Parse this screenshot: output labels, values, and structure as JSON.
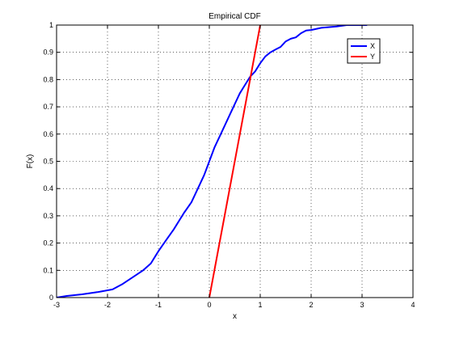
{
  "chart_data": {
    "type": "line",
    "title": "Empirical CDF",
    "xlabel": "x",
    "ylabel": "F(x)",
    "xlim": [
      -3,
      4
    ],
    "ylim": [
      0,
      1
    ],
    "xticks": [
      -3,
      -2,
      -1,
      0,
      1,
      2,
      3,
      4
    ],
    "yticks": [
      0,
      0.1,
      0.2,
      0.3,
      0.4,
      0.5,
      0.6,
      0.7,
      0.8,
      0.9,
      1
    ],
    "xtick_labels": [
      "-3",
      "-2",
      "-1",
      "0",
      "1",
      "2",
      "3",
      "4"
    ],
    "ytick_labels": [
      "0",
      "0.1",
      "0.2",
      "0.3",
      "0.4",
      "0.5",
      "0.6",
      "0.7",
      "0.8",
      "0.9",
      "1"
    ],
    "grid": true,
    "legend": {
      "placement": "top-right",
      "entries": [
        "X",
        "Y"
      ]
    },
    "series": [
      {
        "name": "X",
        "color": "#0000ff",
        "x": [
          -3.0,
          -2.8,
          -2.5,
          -2.2,
          -1.9,
          -1.7,
          -1.5,
          -1.3,
          -1.15,
          -1.0,
          -0.85,
          -0.7,
          -0.5,
          -0.35,
          -0.2,
          -0.1,
          0.0,
          0.1,
          0.2,
          0.3,
          0.4,
          0.5,
          0.6,
          0.7,
          0.8,
          0.9,
          1.0,
          1.1,
          1.2,
          1.3,
          1.4,
          1.5,
          1.6,
          1.7,
          1.8,
          1.9,
          2.0,
          2.2,
          2.5,
          2.7,
          3.0,
          3.1
        ],
        "y": [
          0.0,
          0.006,
          0.012,
          0.02,
          0.03,
          0.05,
          0.075,
          0.1,
          0.125,
          0.17,
          0.21,
          0.25,
          0.31,
          0.35,
          0.41,
          0.45,
          0.5,
          0.55,
          0.59,
          0.63,
          0.67,
          0.71,
          0.75,
          0.78,
          0.81,
          0.83,
          0.86,
          0.885,
          0.9,
          0.91,
          0.92,
          0.94,
          0.95,
          0.955,
          0.97,
          0.98,
          0.982,
          0.99,
          0.995,
          1.0,
          1.0,
          1.0
        ]
      },
      {
        "name": "Y",
        "color": "#ff0000",
        "x": [
          0.0,
          0.1,
          0.2,
          0.3,
          0.4,
          0.5,
          0.6,
          0.7,
          0.8,
          0.9,
          1.0
        ],
        "y": [
          0.0,
          0.1,
          0.2,
          0.3,
          0.4,
          0.5,
          0.6,
          0.7,
          0.8,
          0.9,
          1.0
        ]
      }
    ]
  }
}
